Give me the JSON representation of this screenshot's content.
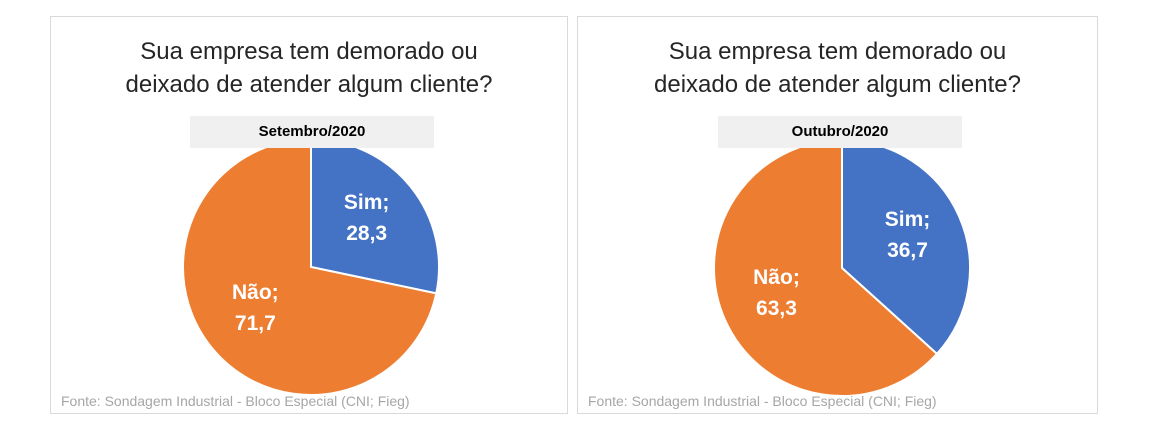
{
  "colors": {
    "sim": "#4472c4",
    "nao": "#ed7d31",
    "label": "#ffffff",
    "period_bg": "#f0f0f0"
  },
  "chart_data": [
    {
      "type": "pie",
      "title": "Sua empresa tem demorado ou deixado de atender algum cliente?",
      "title_lines": [
        "Sua empresa tem demorado ou",
        "deixado de atender algum cliente?"
      ],
      "subtitle": "Setembro/2020",
      "slices": [
        {
          "name": "Sim",
          "value": 28.3,
          "label_name": "Sim;",
          "label_value": "28,3"
        },
        {
          "name": "Não",
          "value": 71.7,
          "label_name": "Não;",
          "label_value": "71,7"
        }
      ],
      "source": "Fonte: Sondagem Industrial - Bloco Especial (CNI; Fieg)"
    },
    {
      "type": "pie",
      "title": "Sua empresa tem demorado ou deixado de atender algum cliente?",
      "title_lines": [
        "Sua empresa tem demorado ou",
        "deixado de atender algum cliente?"
      ],
      "subtitle": "Outubro/2020",
      "slices": [
        {
          "name": "Sim",
          "value": 36.7,
          "label_name": "Sim;",
          "label_value": "36,7"
        },
        {
          "name": "Não",
          "value": 63.3,
          "label_name": "Não;",
          "label_value": "63,3"
        }
      ],
      "source": "Fonte: Sondagem Industrial - Bloco Especial (CNI; Fieg)"
    }
  ]
}
